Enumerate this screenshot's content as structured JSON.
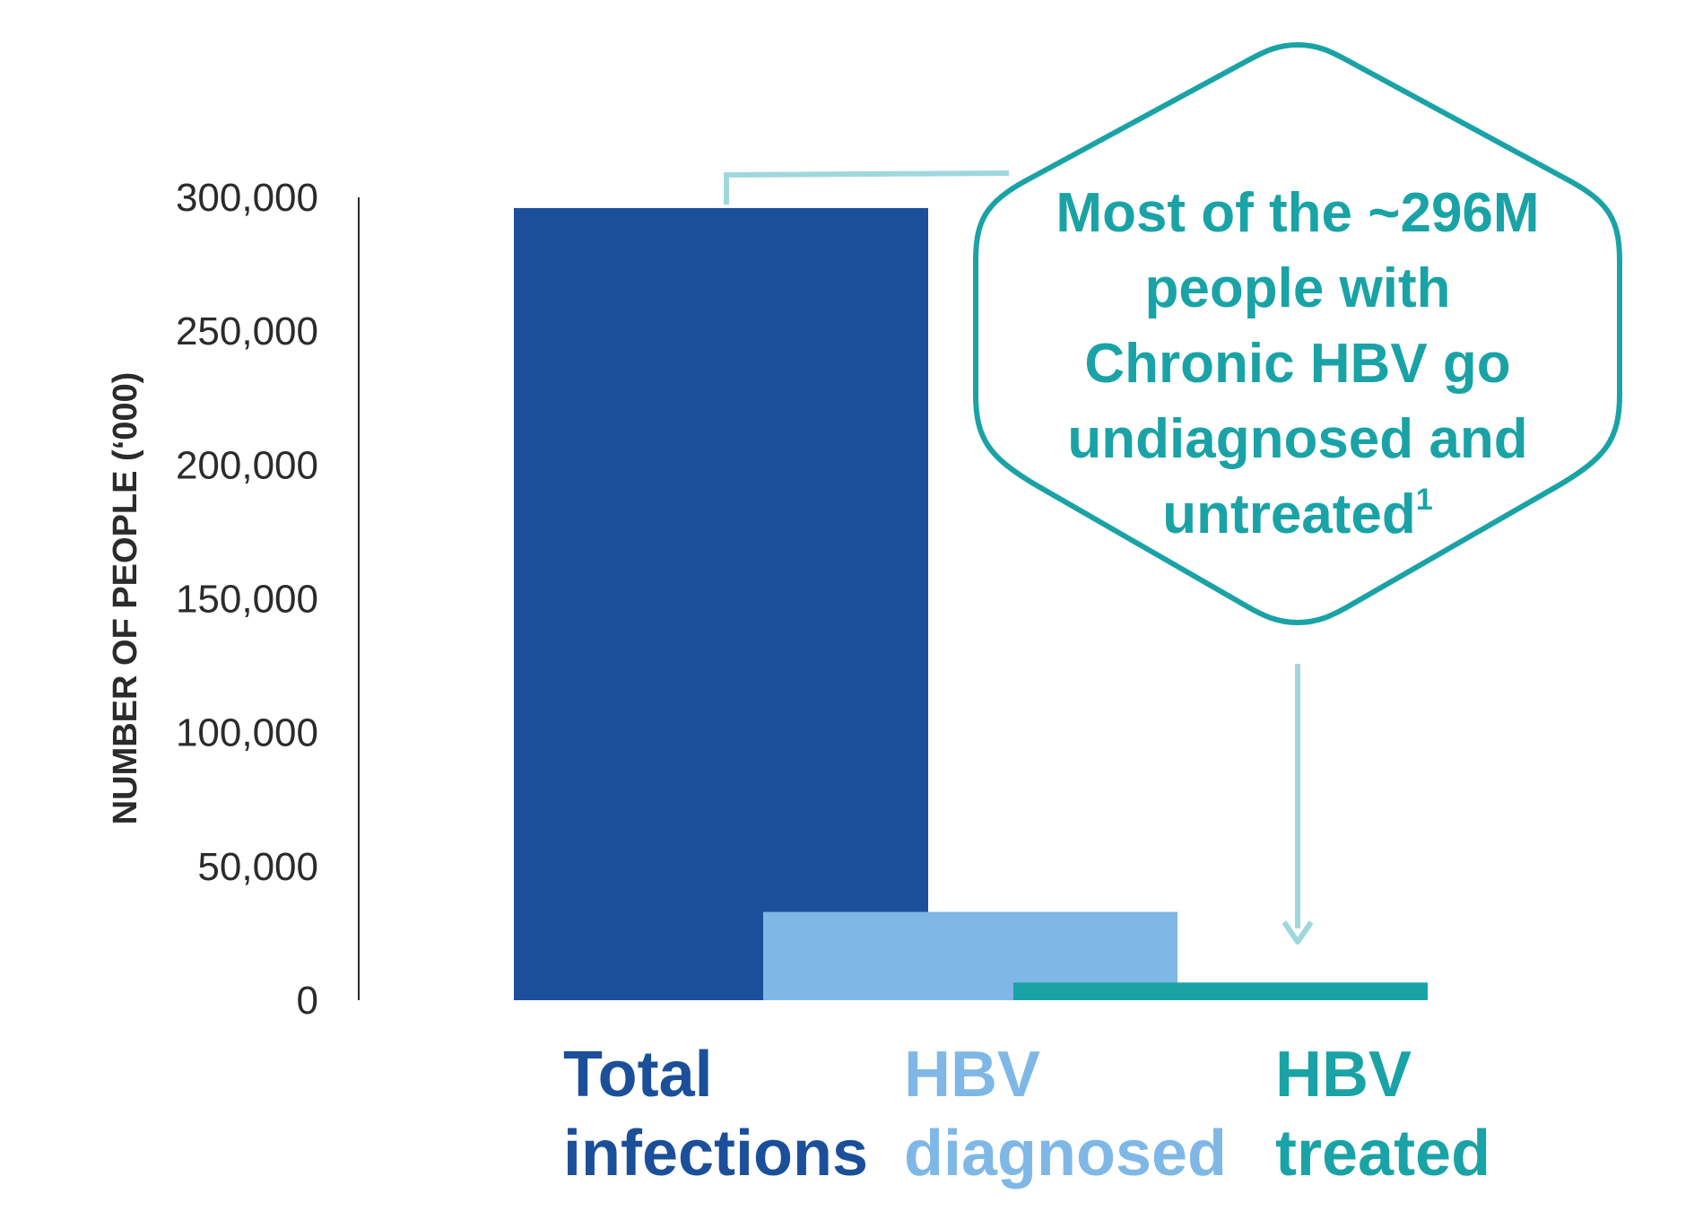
{
  "chart_data": {
    "type": "bar",
    "ylabel": "NUMBER OF PEOPLE (‘000)",
    "ylim": [
      0,
      300000
    ],
    "yticks": [
      "0",
      "50,000",
      "100,000",
      "150,000",
      "200,000",
      "250,000",
      "300,000"
    ],
    "ytick_values": [
      0,
      50000,
      100000,
      150000,
      200000,
      250000,
      300000
    ],
    "grid": false,
    "categories": [
      {
        "line1": "Total",
        "line2": "infections",
        "value": 296000,
        "color": "#1b4f9a"
      },
      {
        "line1": "HBV",
        "line2": "diagnosed",
        "value": 33000,
        "color": "#7fb8e6"
      },
      {
        "line1": "HBV",
        "line2": "treated",
        "value": 6600,
        "color": "#1aa3a6"
      }
    ],
    "annotation": {
      "lines": [
        "Most of the ~296M",
        "people with",
        "Chronic HBV go",
        "undiagnosed and",
        "untreated"
      ],
      "superscript": "1",
      "color": "#1aa3a6",
      "connector_color": "#9fd8dc"
    }
  }
}
